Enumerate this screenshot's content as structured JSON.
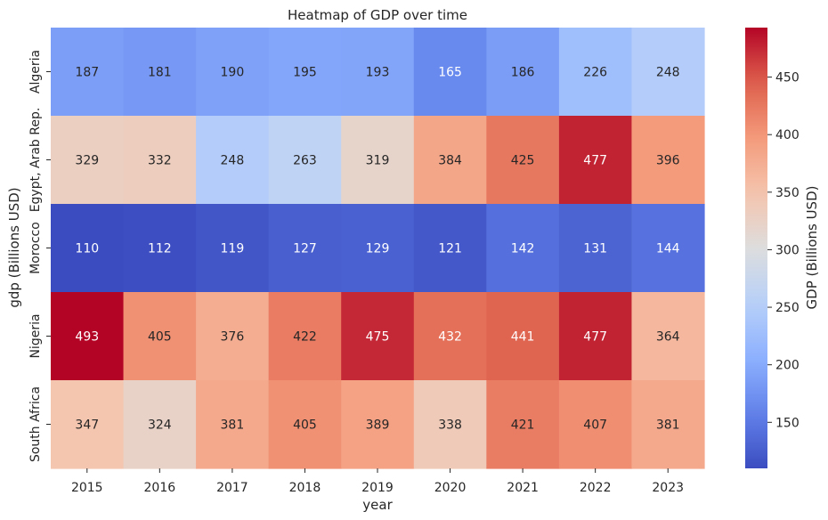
{
  "chart_data": {
    "type": "heatmap",
    "title": "Heatmap of GDP over time",
    "xlabel": "year",
    "ylabel": "gdp (Billions USD)",
    "x": [
      "2015",
      "2016",
      "2017",
      "2018",
      "2019",
      "2020",
      "2021",
      "2022",
      "2023"
    ],
    "y": [
      "Algeria",
      "Egypt, Arab Rep.",
      "Morocco",
      "Nigeria",
      "South Africa"
    ],
    "values": [
      [
        187,
        181,
        190,
        195,
        193,
        165,
        186,
        226,
        248
      ],
      [
        329,
        332,
        248,
        263,
        319,
        384,
        425,
        477,
        396
      ],
      [
        110,
        112,
        119,
        127,
        129,
        121,
        142,
        131,
        144
      ],
      [
        493,
        405,
        376,
        422,
        475,
        432,
        441,
        477,
        364
      ],
      [
        347,
        324,
        381,
        405,
        389,
        338,
        421,
        407,
        381
      ]
    ],
    "colormap": "coolwarm",
    "colorbar": {
      "label": "GDP (Billions USD)",
      "range": [
        110,
        493
      ],
      "ticks": [
        150,
        200,
        250,
        300,
        350,
        400,
        450
      ]
    },
    "annotated": true
  }
}
